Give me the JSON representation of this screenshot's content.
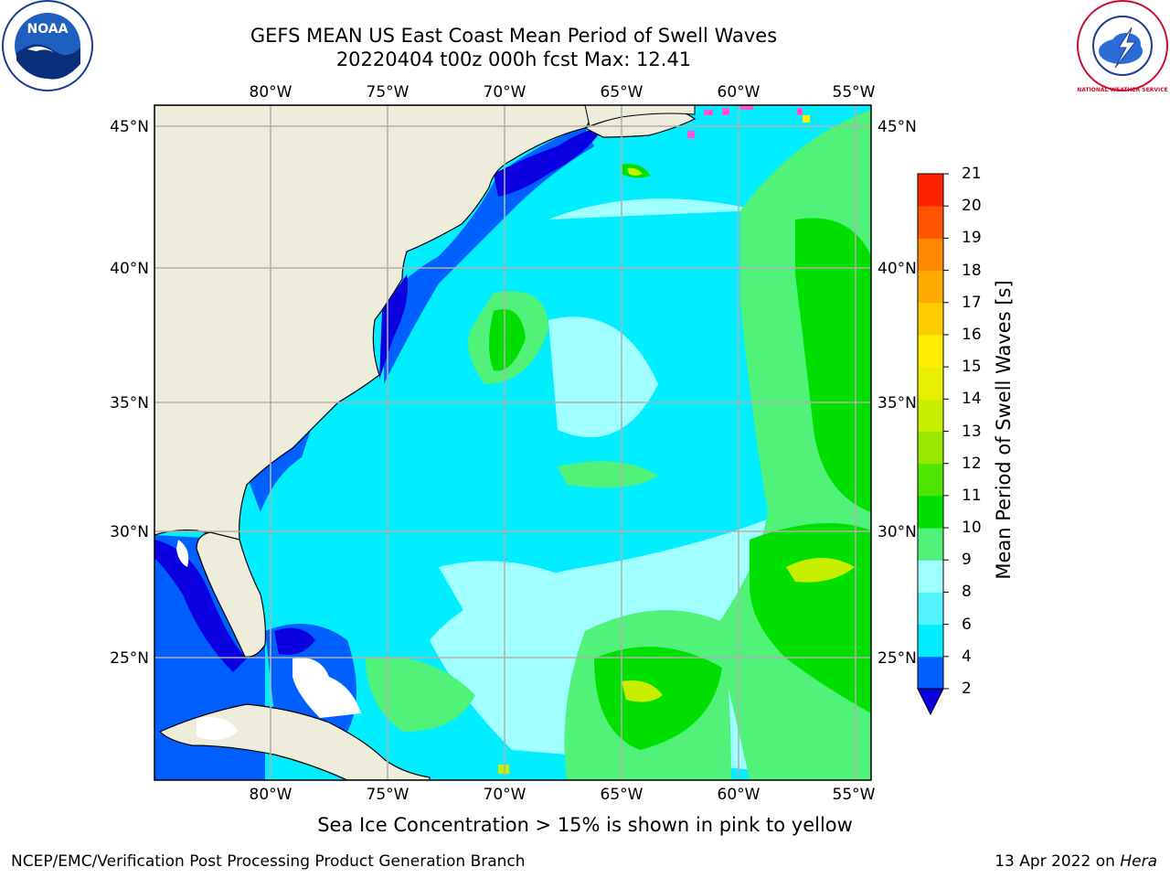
{
  "header": {
    "title_line1": "GEFS MEAN US East Coast Mean Period of Swell Waves",
    "title_line2": "20220404 t00z 000h fcst   Max: 12.41"
  },
  "logos": {
    "noaa_text": "NOAA",
    "nws_text": "NATIONAL WEATHER SERVICE"
  },
  "map": {
    "lon_labels": [
      "80°W",
      "75°W",
      "70°W",
      "65°W",
      "60°W",
      "55°W"
    ],
    "lat_labels": [
      "45°N",
      "40°N",
      "35°N",
      "30°N",
      "25°N"
    ],
    "colors": {
      "land": "#eeeddc",
      "deep_blue": "#0a00e0",
      "blue": "#0060ff",
      "cyan": "#00eeff",
      "light_cyan": "#8cfcff",
      "pale_cyan": "#a0ffff",
      "green": "#50f27a",
      "bright_green": "#00e000",
      "yellow_green": "#c8ee00"
    }
  },
  "colorbar": {
    "label": "Mean Period of Swell Waves [s]",
    "ticks": [
      "2",
      "4",
      "6",
      "8",
      "9",
      "10",
      "11",
      "12",
      "13",
      "14",
      "15",
      "16",
      "17",
      "18",
      "19",
      "20",
      "21"
    ],
    "colors": [
      "#0060ff",
      "#00eeff",
      "#54f4ff",
      "#a0ffff",
      "#50f27a",
      "#00e000",
      "#4ee600",
      "#9ae800",
      "#c8ee00",
      "#e8f000",
      "#ffee00",
      "#ffcc00",
      "#ffaa00",
      "#ff8800",
      "#ff5500",
      "#ff2200",
      "#ff0000"
    ],
    "extend_color": "#0a00e0"
  },
  "footer": {
    "note": "Sea Ice Concentration > 15% is shown in pink to yellow",
    "left": "NCEP/EMC/Verification Post Processing Product Generation Branch",
    "right_date": "13 Apr 2022 on ",
    "right_host": "Hera"
  }
}
